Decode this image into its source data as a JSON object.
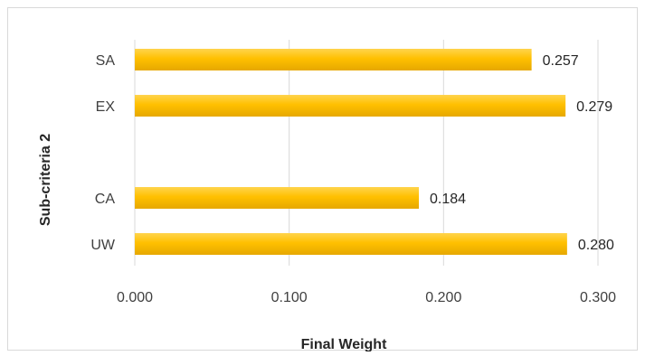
{
  "chart_data": {
    "type": "bar",
    "orientation": "horizontal",
    "title": "",
    "xlabel": "Final Weight",
    "ylabel": "Sub-criteria 2",
    "categories": [
      "SA",
      "EX",
      "",
      "CA",
      "UW"
    ],
    "values": [
      0.257,
      0.279,
      null,
      0.184,
      0.28
    ],
    "data_labels": [
      "0.257",
      "0.279",
      "",
      "0.184",
      "0.280"
    ],
    "xlim": [
      0,
      0.3
    ],
    "xticks": [
      "0.000",
      "0.100",
      "0.200",
      "0.300"
    ],
    "grid": "vertical",
    "legend": "none",
    "bar_color": "#FFC000",
    "bar_color_highlight": "#FFD44D",
    "bar_color_shadow": "#E6A800"
  }
}
